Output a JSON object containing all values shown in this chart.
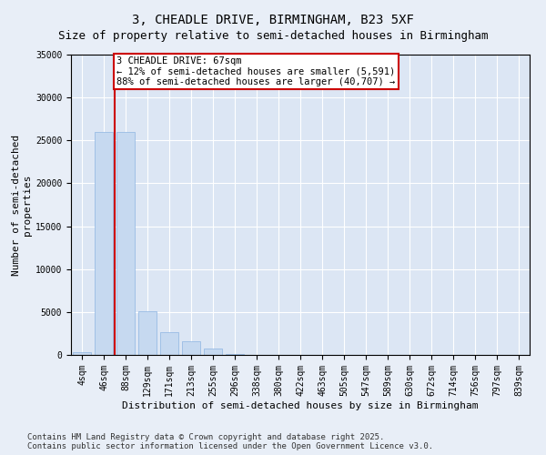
{
  "title": "3, CHEADLE DRIVE, BIRMINGHAM, B23 5XF",
  "subtitle": "Size of property relative to semi-detached houses in Birmingham",
  "xlabel": "Distribution of semi-detached houses by size in Birmingham",
  "ylabel": "Number of semi-detached\nproperties",
  "categories": [
    "4sqm",
    "46sqm",
    "88sqm",
    "129sqm",
    "171sqm",
    "213sqm",
    "255sqm",
    "296sqm",
    "338sqm",
    "380sqm",
    "422sqm",
    "463sqm",
    "505sqm",
    "547sqm",
    "589sqm",
    "630sqm",
    "672sqm",
    "714sqm",
    "756sqm",
    "797sqm",
    "839sqm"
  ],
  "values": [
    300,
    26000,
    26000,
    5100,
    2700,
    1600,
    700,
    150,
    50,
    15,
    8,
    4,
    2,
    1,
    1,
    0,
    0,
    0,
    0,
    0,
    0
  ],
  "bar_color": "#c6d9f0",
  "bar_edge_color": "#8db4e2",
  "property_line_x": 1.5,
  "property_line_color": "#cc0000",
  "annotation_title": "3 CHEADLE DRIVE: 67sqm",
  "annotation_line1": "← 12% of semi-detached houses are smaller (5,591)",
  "annotation_line2": "88% of semi-detached houses are larger (40,707) →",
  "annotation_box_color": "#cc0000",
  "ylim": [
    0,
    35000
  ],
  "yticks": [
    0,
    5000,
    10000,
    15000,
    20000,
    25000,
    30000,
    35000
  ],
  "background_color": "#e8eef7",
  "plot_background": "#dce6f4",
  "footer_line1": "Contains HM Land Registry data © Crown copyright and database right 2025.",
  "footer_line2": "Contains public sector information licensed under the Open Government Licence v3.0.",
  "title_fontsize": 10,
  "axis_label_fontsize": 8,
  "tick_fontsize": 7,
  "footer_fontsize": 6.5,
  "annotation_fontsize": 7.5
}
